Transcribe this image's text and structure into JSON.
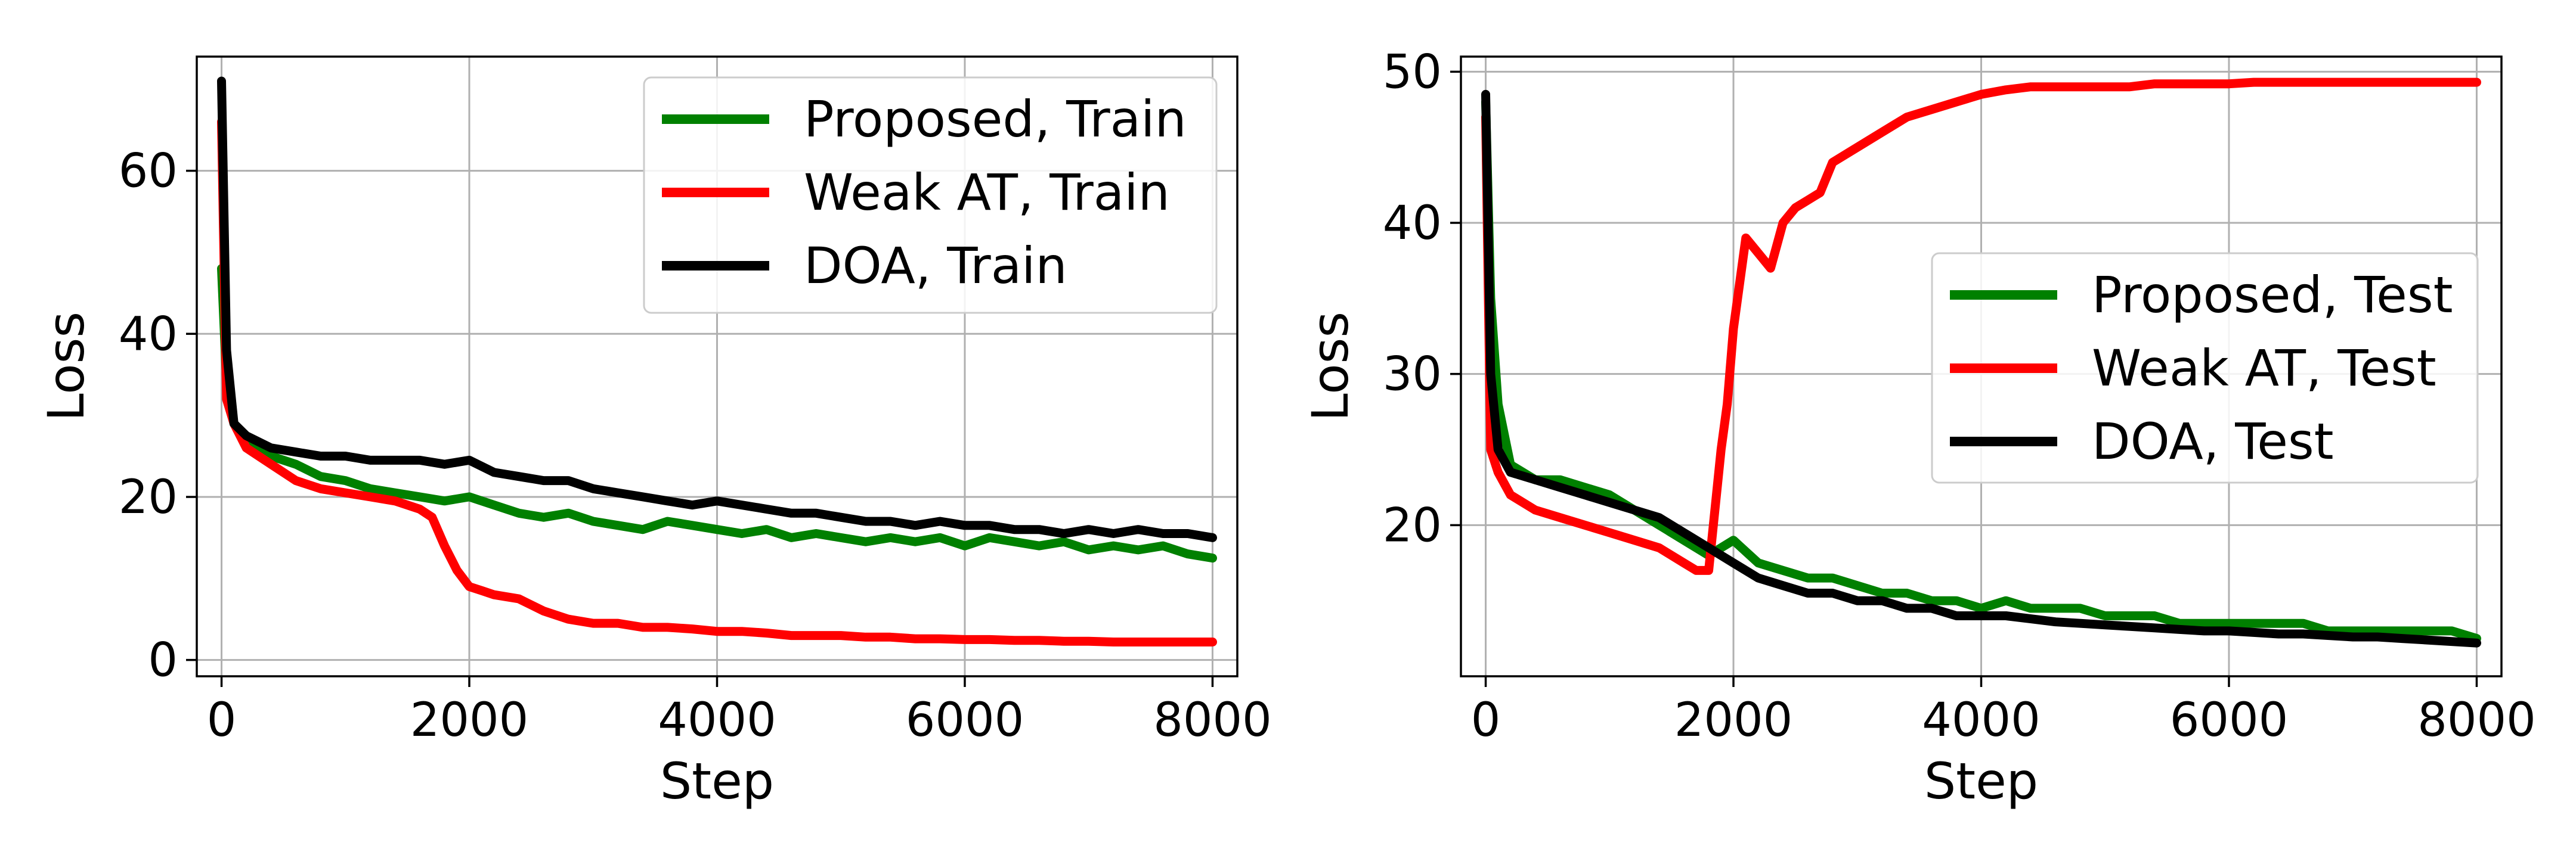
{
  "chart_data": [
    {
      "type": "line",
      "xlabel": "Step",
      "ylabel": "Loss",
      "xlim": [
        -200,
        8200
      ],
      "ylim": [
        -2,
        74
      ],
      "xticks": [
        0,
        2000,
        4000,
        6000,
        8000
      ],
      "yticks": [
        0,
        20,
        40,
        60
      ],
      "grid": true,
      "legend_position": "top-right",
      "series": [
        {
          "name": "Proposed, Train",
          "color": "#008000",
          "x": [
            0,
            40,
            100,
            200,
            400,
            600,
            800,
            1000,
            1200,
            1400,
            1600,
            1800,
            2000,
            2200,
            2400,
            2600,
            2800,
            3000,
            3200,
            3400,
            3600,
            3800,
            4000,
            4200,
            4400,
            4600,
            4800,
            5000,
            5200,
            5400,
            5600,
            5800,
            6000,
            6200,
            6400,
            6600,
            6800,
            7000,
            7200,
            7400,
            7600,
            7800,
            8000
          ],
          "y": [
            48,
            34,
            29,
            27,
            25,
            24,
            22.5,
            22,
            21,
            20.5,
            20,
            19.5,
            20,
            19,
            18,
            17.5,
            18,
            17,
            16.5,
            16,
            17,
            16.5,
            16,
            15.5,
            16,
            15,
            15.5,
            15,
            14.5,
            15,
            14.5,
            15,
            14,
            15,
            14.5,
            14,
            14.5,
            13.5,
            14,
            13.5,
            14,
            13,
            12.5
          ]
        },
        {
          "name": "Weak AT, Train",
          "color": "#ff0000",
          "x": [
            0,
            40,
            100,
            200,
            400,
            600,
            800,
            1000,
            1200,
            1400,
            1600,
            1700,
            1800,
            1900,
            2000,
            2100,
            2200,
            2400,
            2600,
            2800,
            3000,
            3200,
            3400,
            3600,
            3800,
            4000,
            4200,
            4400,
            4600,
            4800,
            5000,
            5200,
            5400,
            5600,
            5800,
            6000,
            6200,
            6400,
            6600,
            6800,
            7000,
            7200,
            7400,
            7600,
            7800,
            8000
          ],
          "y": [
            66,
            32,
            29,
            26,
            24,
            22,
            21,
            20.5,
            20,
            19.5,
            18.5,
            17.5,
            14,
            11,
            9,
            8.5,
            8,
            7.5,
            6,
            5,
            4.5,
            4.5,
            4,
            4,
            3.8,
            3.5,
            3.5,
            3.3,
            3,
            3,
            3,
            2.8,
            2.8,
            2.6,
            2.6,
            2.5,
            2.5,
            2.4,
            2.4,
            2.3,
            2.3,
            2.2,
            2.2,
            2.2,
            2.2,
            2.2
          ]
        },
        {
          "name": "DOA, Train",
          "color": "#000000",
          "x": [
            0,
            40,
            100,
            200,
            400,
            600,
            800,
            1000,
            1200,
            1400,
            1600,
            1800,
            2000,
            2200,
            2400,
            2600,
            2800,
            3000,
            3200,
            3400,
            3600,
            3800,
            4000,
            4200,
            4400,
            4600,
            4800,
            5000,
            5200,
            5400,
            5600,
            5800,
            6000,
            6200,
            6400,
            6600,
            6800,
            7000,
            7200,
            7400,
            7600,
            7800,
            8000
          ],
          "y": [
            71,
            38,
            29,
            27.5,
            26,
            25.5,
            25,
            25,
            24.5,
            24.5,
            24.5,
            24,
            24.5,
            23,
            22.5,
            22,
            22,
            21,
            20.5,
            20,
            19.5,
            19,
            19.5,
            19,
            18.5,
            18,
            18,
            17.5,
            17,
            17,
            16.5,
            17,
            16.5,
            16.5,
            16,
            16,
            15.5,
            16,
            15.5,
            16,
            15.5,
            15.5,
            15
          ]
        }
      ]
    },
    {
      "type": "line",
      "xlabel": "Step",
      "ylabel": "Loss",
      "xlim": [
        -200,
        8200
      ],
      "ylim": [
        10,
        51
      ],
      "xticks": [
        0,
        2000,
        4000,
        6000,
        8000
      ],
      "yticks": [
        20,
        30,
        40,
        50
      ],
      "grid": true,
      "legend_position": "center-right",
      "series": [
        {
          "name": "Proposed, Test",
          "color": "#008000",
          "x": [
            0,
            40,
            100,
            200,
            400,
            600,
            800,
            1000,
            1200,
            1400,
            1600,
            1800,
            2000,
            2200,
            2400,
            2600,
            2800,
            3000,
            3200,
            3400,
            3600,
            3800,
            4000,
            4200,
            4400,
            4600,
            4800,
            5000,
            5200,
            5400,
            5600,
            5800,
            6000,
            6200,
            6400,
            6600,
            6800,
            7000,
            7200,
            7400,
            7600,
            7800,
            8000
          ],
          "y": [
            48,
            35,
            28,
            24,
            23,
            23,
            22.5,
            22,
            21,
            20,
            19,
            18,
            19,
            17.5,
            17,
            16.5,
            16.5,
            16,
            15.5,
            15.5,
            15,
            15,
            14.5,
            15,
            14.5,
            14.5,
            14.5,
            14,
            14,
            14,
            13.5,
            13.5,
            13.5,
            13.5,
            13.5,
            13.5,
            13,
            13,
            13,
            13,
            13,
            13,
            12.5
          ]
        },
        {
          "name": "Weak AT, Test",
          "color": "#ff0000",
          "x": [
            0,
            40,
            100,
            200,
            400,
            600,
            800,
            1000,
            1200,
            1400,
            1600,
            1700,
            1800,
            1850,
            1900,
            1950,
            2000,
            2050,
            2100,
            2200,
            2300,
            2400,
            2500,
            2600,
            2700,
            2800,
            3000,
            3200,
            3400,
            3600,
            3800,
            4000,
            4200,
            4400,
            4600,
            4800,
            5000,
            5200,
            5400,
            5600,
            5800,
            6000,
            6200,
            6400,
            6600,
            6800,
            7000,
            7200,
            7400,
            7600,
            7800,
            8000
          ],
          "y": [
            47,
            25,
            23.5,
            22,
            21,
            20.5,
            20,
            19.5,
            19,
            18.5,
            17.5,
            17,
            17,
            21,
            25,
            28,
            33,
            36,
            39,
            38,
            37,
            40,
            41,
            41.5,
            42,
            44,
            45,
            46,
            47,
            47.5,
            48,
            48.5,
            48.8,
            49,
            49,
            49,
            49,
            49,
            49.2,
            49.2,
            49.2,
            49.2,
            49.3,
            49.3,
            49.3,
            49.3,
            49.3,
            49.3,
            49.3,
            49.3,
            49.3,
            49.3
          ]
        },
        {
          "name": "DOA, Test",
          "color": "#000000",
          "x": [
            0,
            40,
            100,
            200,
            400,
            600,
            800,
            1000,
            1200,
            1400,
            1600,
            1800,
            2000,
            2200,
            2400,
            2600,
            2800,
            3000,
            3200,
            3400,
            3600,
            3800,
            4000,
            4200,
            4400,
            4600,
            4800,
            5000,
            5200,
            5400,
            5600,
            5800,
            6000,
            6200,
            6400,
            6600,
            6800,
            7000,
            7200,
            7400,
            7600,
            7800,
            8000
          ],
          "y": [
            48.5,
            30,
            25,
            23.5,
            23,
            22.5,
            22,
            21.5,
            21,
            20.5,
            19.5,
            18.5,
            17.5,
            16.5,
            16,
            15.5,
            15.5,
            15,
            15,
            14.5,
            14.5,
            14,
            14,
            14,
            13.8,
            13.6,
            13.5,
            13.4,
            13.3,
            13.2,
            13.1,
            13,
            13,
            12.9,
            12.8,
            12.8,
            12.7,
            12.6,
            12.6,
            12.5,
            12.4,
            12.3,
            12.2
          ]
        }
      ]
    }
  ]
}
